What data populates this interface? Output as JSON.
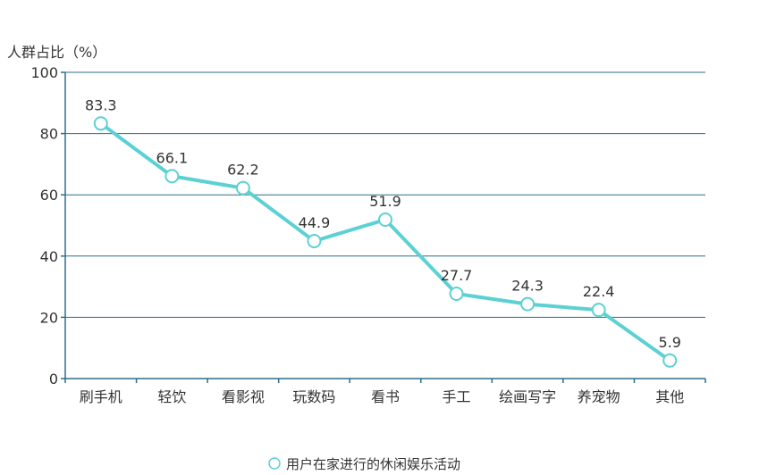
{
  "chart_data": {
    "type": "line",
    "ylabel": "人群占比（%）",
    "ylim": [
      0,
      100
    ],
    "yticks": [
      0,
      20,
      40,
      60,
      80,
      100
    ],
    "categories": [
      "刷手机",
      "轻饮",
      "看影视",
      "玩数码",
      "看书",
      "手工",
      "绘画写字",
      "养宠物",
      "其他"
    ],
    "series": [
      {
        "name": "用户在家进行的休闲娱乐活动",
        "values": [
          83.3,
          66.1,
          62.2,
          44.9,
          51.9,
          27.7,
          24.3,
          22.4,
          5.9
        ],
        "color": "#5bd1d3"
      }
    ],
    "grid": true,
    "legend": "bottom-center"
  }
}
